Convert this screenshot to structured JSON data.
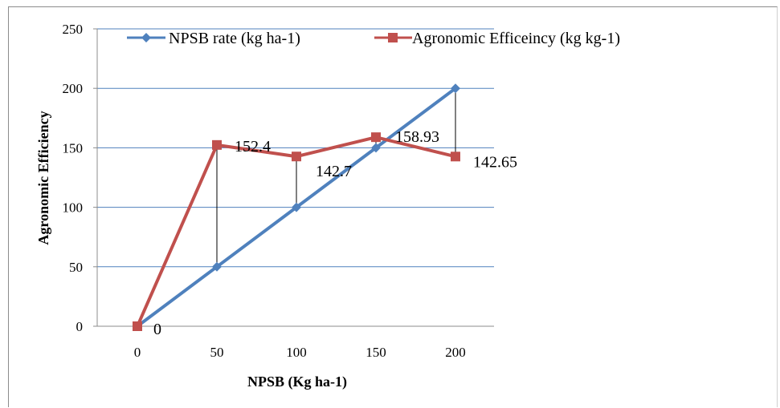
{
  "chart_data": {
    "type": "line",
    "x": [
      0,
      50,
      100,
      150,
      200
    ],
    "series": [
      {
        "name": "NPSB rate (kg ha-1)",
        "values": [
          0,
          50,
          100,
          150,
          200
        ],
        "color": "#4f81bd",
        "marker": "diamond"
      },
      {
        "name": "Agronomic Efficeincy (kg kg-1)",
        "values": [
          0,
          152.4,
          142.7,
          158.93,
          142.65
        ],
        "color": "#c0504d",
        "marker": "square"
      }
    ],
    "data_labels": [
      "0",
      "152.4",
      "142.7",
      "158.93",
      "142.65"
    ],
    "xlabel": "NPSB  (Kg ha-1)",
    "ylabel": "Agronomic Efficiency",
    "xticks": [
      "0",
      "50",
      "100",
      "150",
      "200"
    ],
    "yticks": [
      "0",
      "50",
      "100",
      "150",
      "200",
      "250"
    ],
    "ylim": [
      0,
      250
    ],
    "grid": true,
    "legend_position": "top",
    "drop_lines": true
  }
}
